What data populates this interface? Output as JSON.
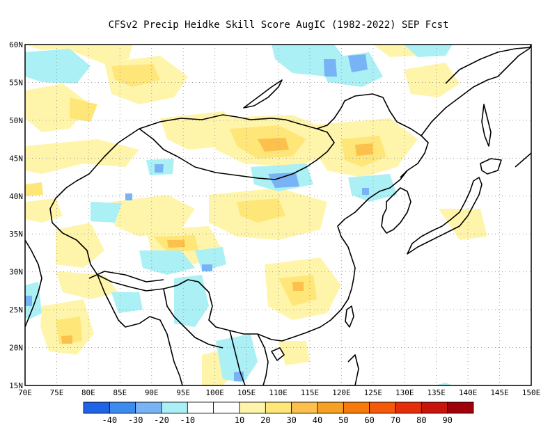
{
  "title": "CFSv2 Precip Heidke Skill Score AugIC (1982-2022) SEP Fcst",
  "map": {
    "lon_range": [
      70,
      150
    ],
    "lat_range": [
      15,
      60
    ],
    "lon_ticks": [
      "70E",
      "75E",
      "80E",
      "85E",
      "90E",
      "95E",
      "100E",
      "105E",
      "110E",
      "115E",
      "120E",
      "125E",
      "130E",
      "135E",
      "140E",
      "145E",
      "150E"
    ],
    "lat_ticks": [
      "60N",
      "55N",
      "50N",
      "45N",
      "40N",
      "35N",
      "30N",
      "25N",
      "20N",
      "15N"
    ],
    "grid": "dotted"
  },
  "colorbar": {
    "colors": [
      "#1f64e6",
      "#3c8cf0",
      "#78b4f5",
      "#aaf0f5",
      "#ffffff",
      "#ffffff",
      "#fff5aa",
      "#ffe678",
      "#fcc04c",
      "#f7a124",
      "#f77a0a",
      "#f55a0a",
      "#e62d0a",
      "#c8140a",
      "#a0000a"
    ],
    "labels": [
      "-40",
      "-30",
      "-20",
      "-10",
      "10",
      "20",
      "30",
      "40",
      "50",
      "60",
      "70",
      "80",
      "90"
    ]
  }
}
